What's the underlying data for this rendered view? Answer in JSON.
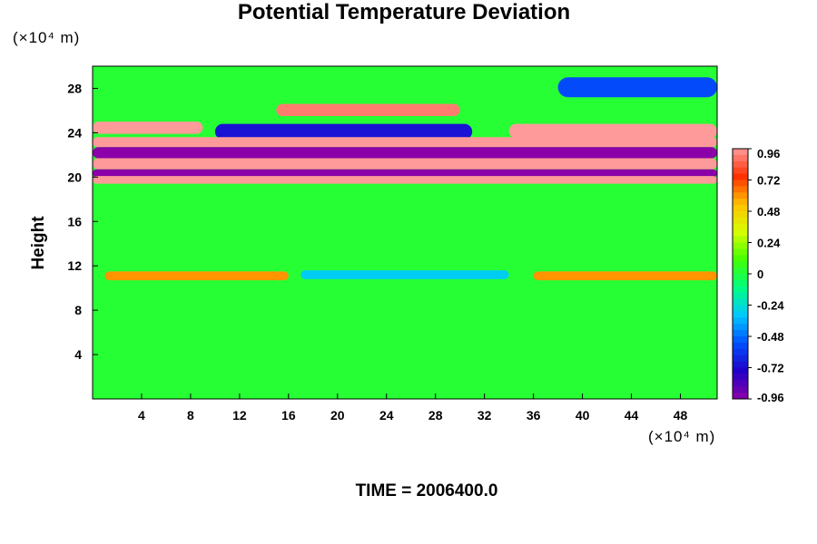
{
  "chart_data": {
    "type": "heatmap",
    "title": "Potential Temperature Deviation",
    "ylabel": "Height",
    "xlabel": "",
    "x_unit": "(×10⁴ m)",
    "y_unit": "(×10⁴ m)",
    "xlim": [
      0,
      51
    ],
    "ylim": [
      0,
      30
    ],
    "x_ticks": [
      4,
      8,
      12,
      16,
      20,
      24,
      28,
      32,
      36,
      40,
      44,
      48
    ],
    "y_ticks": [
      4,
      8,
      12,
      16,
      20,
      24,
      28
    ],
    "colorbar": {
      "ticks": [
        0.96,
        0.72,
        0.48,
        0.24,
        0,
        -0.24,
        -0.48,
        -0.72,
        -0.96
      ],
      "range": [
        -0.96,
        0.96
      ],
      "colormap": [
        "#8b00a8",
        "#2000c8",
        "#0050ff",
        "#00c8ff",
        "#00ff80",
        "#40ff00",
        "#d8ff00",
        "#ffc000",
        "#ff3000",
        "#ff9a9a"
      ]
    },
    "field_bands": [
      {
        "y_range": [
          27.2,
          29.0
        ],
        "value": -0.55,
        "x_range": [
          38,
          51
        ],
        "note": "blue band upper right"
      },
      {
        "y_range": [
          25.5,
          26.6
        ],
        "value": 0.9,
        "x_range": [
          15,
          30
        ]
      },
      {
        "y_range": [
          23.9,
          25.0
        ],
        "value": 0.96,
        "x_range": [
          0,
          9
        ]
      },
      {
        "y_range": [
          23.4,
          24.8
        ],
        "value": -0.7,
        "x_range": [
          10,
          31
        ]
      },
      {
        "y_range": [
          23.5,
          24.8
        ],
        "value": 0.96,
        "x_range": [
          34,
          51
        ]
      },
      {
        "y_range": [
          22.7,
          23.6
        ],
        "value": 0.96,
        "x_range": [
          0,
          51
        ]
      },
      {
        "y_range": [
          21.7,
          22.7
        ],
        "value": -0.96,
        "x_range": [
          0,
          51
        ]
      },
      {
        "y_range": [
          20.7,
          21.7
        ],
        "value": 0.96,
        "x_range": [
          0,
          51
        ]
      },
      {
        "y_range": [
          20.0,
          20.7
        ],
        "value": -0.96,
        "x_range": [
          0,
          51
        ]
      },
      {
        "y_range": [
          19.4,
          20.1
        ],
        "value": 0.96,
        "x_range": [
          0,
          51
        ]
      },
      {
        "y_range": [
          10.7,
          11.5
        ],
        "value": 0.6,
        "x_range": [
          1,
          16
        ]
      },
      {
        "y_range": [
          10.8,
          11.6
        ],
        "value": -0.3,
        "x_range": [
          17,
          34
        ]
      },
      {
        "y_range": [
          10.7,
          11.5
        ],
        "value": 0.6,
        "x_range": [
          36,
          51
        ]
      }
    ]
  },
  "footer": {
    "time_label": "TIME = 2006400.0"
  }
}
